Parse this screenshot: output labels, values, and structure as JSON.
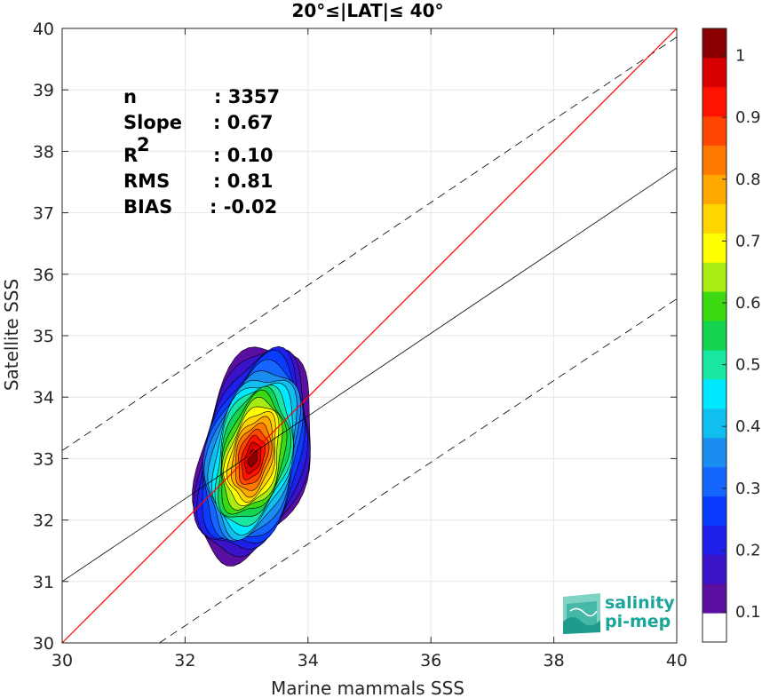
{
  "chart_data": {
    "type": "scatter-density-contour",
    "title": "20°≤|LAT|≤ 40°",
    "xlabel": "Marine mammals SSS",
    "ylabel": "Satellite SSS",
    "xlim": [
      30,
      40
    ],
    "ylim": [
      30,
      40
    ],
    "xticks": [
      "30",
      "32",
      "34",
      "36",
      "38",
      "40"
    ],
    "yticks": [
      "30",
      "31",
      "32",
      "33",
      "34",
      "35",
      "36",
      "37",
      "38",
      "39",
      "40"
    ],
    "grid": true,
    "stats": [
      {
        "key": "n",
        "value": ": 3357"
      },
      {
        "key": "Slope",
        "value": ": 0.67"
      },
      {
        "key": "R",
        "sup": "2",
        "value": ": 0.10"
      },
      {
        "key": "RMS",
        "value": ": 0.81"
      },
      {
        "key": "BIAS",
        "value": ": -0.02"
      }
    ],
    "lines": {
      "identity": {
        "slope": 1,
        "intercept": 0,
        "color": "#ff0000"
      },
      "regression": {
        "x": [
          30,
          40
        ],
        "y": [
          31.0,
          37.73
        ],
        "color": "#000000"
      },
      "upper_bound": {
        "x": [
          30,
          40
        ],
        "y": [
          33.13,
          39.86
        ],
        "style": "dashed"
      },
      "lower_bound": {
        "x": [
          31.58,
          40
        ],
        "y": [
          30.0,
          35.6
        ],
        "style": "dashed"
      }
    },
    "density": {
      "center": [
        33.1,
        33.0
      ],
      "extent_x": [
        32.4,
        34.2
      ],
      "extent_y": [
        31.35,
        34.85
      ],
      "levels": [
        0.05,
        0.1,
        0.15,
        0.2,
        0.25,
        0.3,
        0.35,
        0.4,
        0.45,
        0.5,
        0.55,
        0.6,
        0.65,
        0.7,
        0.75,
        0.8,
        0.85,
        0.9,
        0.95
      ]
    },
    "colorbar": {
      "ticks": [
        "0.1",
        "0.2",
        "0.3",
        "0.4",
        "0.5",
        "0.6",
        "0.7",
        "0.8",
        "0.9",
        "1"
      ],
      "colors": [
        "#ffffff",
        "#5a0fa0",
        "#3a12c8",
        "#1e20ea",
        "#0a3cff",
        "#1565ff",
        "#198ef0",
        "#10bff0",
        "#00e8ff",
        "#19e6a0",
        "#12d450",
        "#3ad912",
        "#a8ec14",
        "#ffff00",
        "#ffd600",
        "#ffa800",
        "#ff7800",
        "#ff4600",
        "#ff1200",
        "#d80000",
        "#8a0000"
      ]
    }
  },
  "logo": {
    "line1": "salinity",
    "line2": "pi-mep",
    "color": "#1aa69a"
  }
}
